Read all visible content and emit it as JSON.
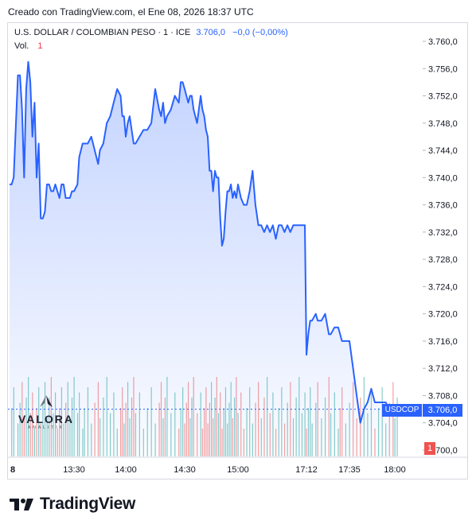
{
  "caption": "Creado con TradingView.com, el Ene 08, 2026 18:37 UTC",
  "symbol": {
    "title": "U.S. DOLLAR / COLOMBIAN PESO · 1 · ICE",
    "price": "3.706,0",
    "change": "−0,0 (−0,00%)",
    "vol_label": "Vol.",
    "vol_value": "1"
  },
  "watermark": {
    "name": "VALORA",
    "sub": "ANALITIK"
  },
  "price_tag": {
    "symbol": "USDCOP",
    "price": "3.706,0"
  },
  "vol_tag": "1",
  "footer_logo": "TradingView",
  "colors": {
    "line": "#2962ff",
    "up": "#26a69a",
    "down": "#ef5350",
    "area": "#2962ff"
  },
  "chart_data": {
    "type": "area",
    "ylim": [
      3700,
      3762
    ],
    "y_ticks": [
      3760,
      3756,
      3752,
      3748,
      3744,
      3740,
      3736,
      3732,
      3728,
      3724,
      3720,
      3716,
      3712,
      3708,
      3704,
      3700
    ],
    "y_tick_labels": [
      "3.760,0",
      "3.756,0",
      "3.752,0",
      "3.748,0",
      "3.744,0",
      "3.740,0",
      "3.736,0",
      "3.732,0",
      "3.728,0",
      "3.724,0",
      "3.720,0",
      "3.716,0",
      "3.712,0",
      "3.708,0",
      "3.704,0",
      "3.700,0"
    ],
    "x_ticks": [
      {
        "t": "12:59",
        "label": "8"
      },
      {
        "t": "13:30",
        "label": "13:30"
      },
      {
        "t": "14:00",
        "label": "14:00"
      },
      {
        "t": "14:30",
        "label": "14:30"
      },
      {
        "t": "15:00",
        "label": "15:00"
      },
      {
        "t": "17:12",
        "label": "17:12"
      },
      {
        "t": "17:35",
        "label": "17:35"
      },
      {
        "t": "18:00",
        "label": "18:00"
      }
    ],
    "series": [
      {
        "times": [
          "12:59",
          "13:00",
          "13:01",
          "13:03",
          "13:04",
          "13:05",
          "13:06",
          "13:07",
          "13:08",
          "13:09",
          "13:10",
          "13:11",
          "13:12",
          "13:13",
          "13:14",
          "13:15",
          "13:16",
          "13:17",
          "13:18",
          "13:19",
          "13:20",
          "13:21",
          "13:22",
          "13:23",
          "13:24",
          "13:25",
          "13:26",
          "13:27",
          "13:28",
          "13:29",
          "13:30",
          "13:32",
          "13:33",
          "13:35",
          "13:36",
          "13:38",
          "13:40",
          "13:42",
          "13:44",
          "13:45",
          "13:47",
          "13:49",
          "13:51",
          "13:53",
          "13:55",
          "13:57",
          "13:58",
          "13:59",
          "14:00",
          "14:01",
          "14:02",
          "14:03",
          "14:04",
          "14:05",
          "14:07",
          "14:09",
          "14:11",
          "14:13",
          "14:15",
          "14:17",
          "14:18",
          "14:19",
          "14:20",
          "14:21",
          "14:23",
          "14:25",
          "14:27",
          "14:28",
          "14:29",
          "14:30",
          "14:31",
          "14:32",
          "14:33",
          "14:34",
          "14:35",
          "14:37",
          "14:39",
          "14:40",
          "14:41",
          "14:42",
          "14:43",
          "14:44",
          "14:45",
          "14:46",
          "14:47",
          "14:48",
          "14:49",
          "14:50",
          "14:51",
          "14:52",
          "14:53",
          "14:54",
          "14:55",
          "14:56",
          "14:57",
          "14:58",
          "14:59",
          "15:00",
          "15:01",
          "15:02",
          "15:03",
          "15:04",
          "15:05",
          "15:06",
          "15:07",
          "15:08",
          "15:09",
          "15:10",
          "15:11",
          "15:12",
          "15:13",
          "15:14",
          "15:15",
          "15:16",
          "15:17",
          "15:18",
          "15:19",
          "15:20",
          "15:21",
          "15:22",
          "15:23",
          "17:12",
          "17:13",
          "17:14",
          "17:15",
          "17:17",
          "17:18",
          "17:20",
          "17:22",
          "17:24",
          "17:25",
          "17:27",
          "17:29",
          "17:30",
          "17:31",
          "17:33",
          "17:35",
          "17:37",
          "17:39",
          "17:41",
          "17:43",
          "17:45",
          "17:47",
          "17:49",
          "17:51",
          "17:53",
          "17:55",
          "17:57",
          "17:59",
          "18:00",
          "18:01"
        ],
        "values": [
          3739,
          3739,
          3740,
          3755,
          3755,
          3750,
          3740,
          3753,
          3757,
          3754,
          3746,
          3751,
          3740,
          3745,
          3734,
          3734,
          3735,
          3739,
          3739,
          3738,
          3738,
          3739,
          3738,
          3737,
          3739,
          3739,
          3737,
          3737,
          3737,
          3738,
          3738,
          3739,
          3743,
          3745,
          3745,
          3745,
          3746,
          3744,
          3742,
          3744,
          3745,
          3748,
          3749,
          3751,
          3753,
          3752,
          3749,
          3749,
          3746,
          3748,
          3749,
          3747,
          3745,
          3745,
          3746,
          3747,
          3747,
          3748,
          3753,
          3750,
          3749,
          3751,
          3748,
          3749,
          3750,
          3752,
          3751,
          3754,
          3754,
          3753,
          3752,
          3751,
          3752,
          3752,
          3750,
          3748,
          3752,
          3750,
          3749,
          3747,
          3746,
          3741,
          3741,
          3738,
          3741,
          3740,
          3740,
          3734,
          3730,
          3731,
          3735,
          3738,
          3738,
          3739,
          3737,
          3738,
          3737,
          3739,
          3737,
          3736,
          3736,
          3738,
          3741,
          3736,
          3733,
          3733,
          3732,
          3733,
          3732,
          3733,
          3731,
          3733,
          3733,
          3732,
          3733,
          3732,
          3733,
          3733,
          3733,
          3733,
          3733,
          3714,
          3717,
          3719,
          3719,
          3720,
          3719,
          3719,
          3720,
          3717,
          3717,
          3718,
          3718,
          3717,
          3716,
          3716,
          3716,
          3712,
          3708,
          3704,
          3706,
          3707,
          3709,
          3707,
          3707,
          3707,
          3707,
          3706,
          3705,
          3706,
          3706
        ]
      }
    ],
    "volume": [
      1,
      1,
      1,
      1,
      1,
      1,
      1,
      1,
      1,
      1,
      1,
      1,
      1,
      1,
      1,
      1,
      1,
      1,
      1,
      1,
      1,
      1,
      1,
      1,
      1,
      1,
      1,
      1,
      1,
      1,
      1,
      1,
      1,
      1,
      1,
      1,
      1,
      1,
      1,
      1,
      1,
      1,
      1,
      1,
      1,
      1,
      1,
      1,
      1,
      1,
      1,
      1,
      1,
      1,
      1,
      1,
      1,
      1,
      1,
      1,
      1,
      1,
      1,
      1,
      1,
      1,
      1,
      1,
      1,
      1,
      1,
      1,
      1,
      1,
      1,
      1,
      1,
      1,
      1,
      1,
      1,
      1,
      1,
      1,
      1,
      1,
      1,
      1,
      1,
      1,
      1,
      1,
      1,
      1,
      1,
      1,
      1,
      1,
      1,
      1,
      1,
      1,
      1,
      1,
      1,
      1,
      1,
      1,
      1,
      1,
      1,
      1,
      1,
      1,
      1,
      1,
      1,
      1,
      1,
      1,
      1,
      1,
      1,
      1,
      1,
      1,
      1,
      1,
      1,
      1,
      1,
      1,
      1,
      1,
      1,
      1,
      1,
      1,
      1,
      1,
      1,
      1,
      1,
      1,
      1,
      1,
      1,
      1,
      1,
      1,
      1,
      1,
      1,
      1,
      1
    ]
  }
}
